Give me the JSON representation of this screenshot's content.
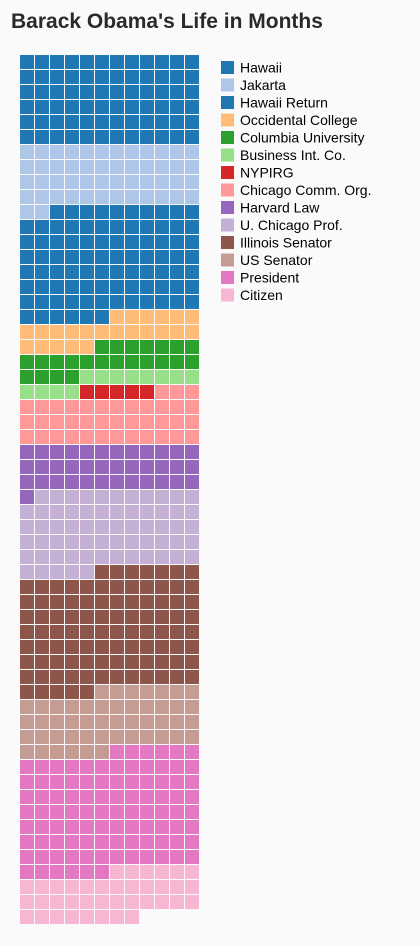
{
  "title": "Barack Obama's Life in Months",
  "chart_data": {
    "type": "waffle",
    "title": "Barack Obama's Life in Months",
    "columns": 12,
    "unit": "month",
    "legend_position": "right",
    "series": [
      {
        "name": "Hawaii",
        "months": 72,
        "color": "#1f77b4"
      },
      {
        "name": "Jakarta",
        "months": 50,
        "color": "#aec7e8"
      },
      {
        "name": "Hawaii Return",
        "months": 88,
        "color": "#1f77b4"
      },
      {
        "name": "Occidental College",
        "months": 23,
        "color": "#ffbb78"
      },
      {
        "name": "Columbia University",
        "months": 23,
        "color": "#2ca02c"
      },
      {
        "name": "Business Int. Co.",
        "months": 12,
        "color": "#98df8a"
      },
      {
        "name": "NYPIRG",
        "months": 5,
        "color": "#d62728"
      },
      {
        "name": "Chicago Comm. Org.",
        "months": 39,
        "color": "#ff9896"
      },
      {
        "name": "Harvard Law",
        "months": 37,
        "color": "#9467bd"
      },
      {
        "name": "U. Chicago Prof.",
        "months": 64,
        "color": "#c5b0d5"
      },
      {
        "name": "Illinois Senator",
        "months": 96,
        "color": "#8c564b"
      },
      {
        "name": "US Senator",
        "months": 49,
        "color": "#c49c94"
      },
      {
        "name": "President",
        "months": 96,
        "color": "#e377c2"
      },
      {
        "name": "Citizen",
        "months": 38,
        "color": "#f7b6d2"
      }
    ]
  }
}
